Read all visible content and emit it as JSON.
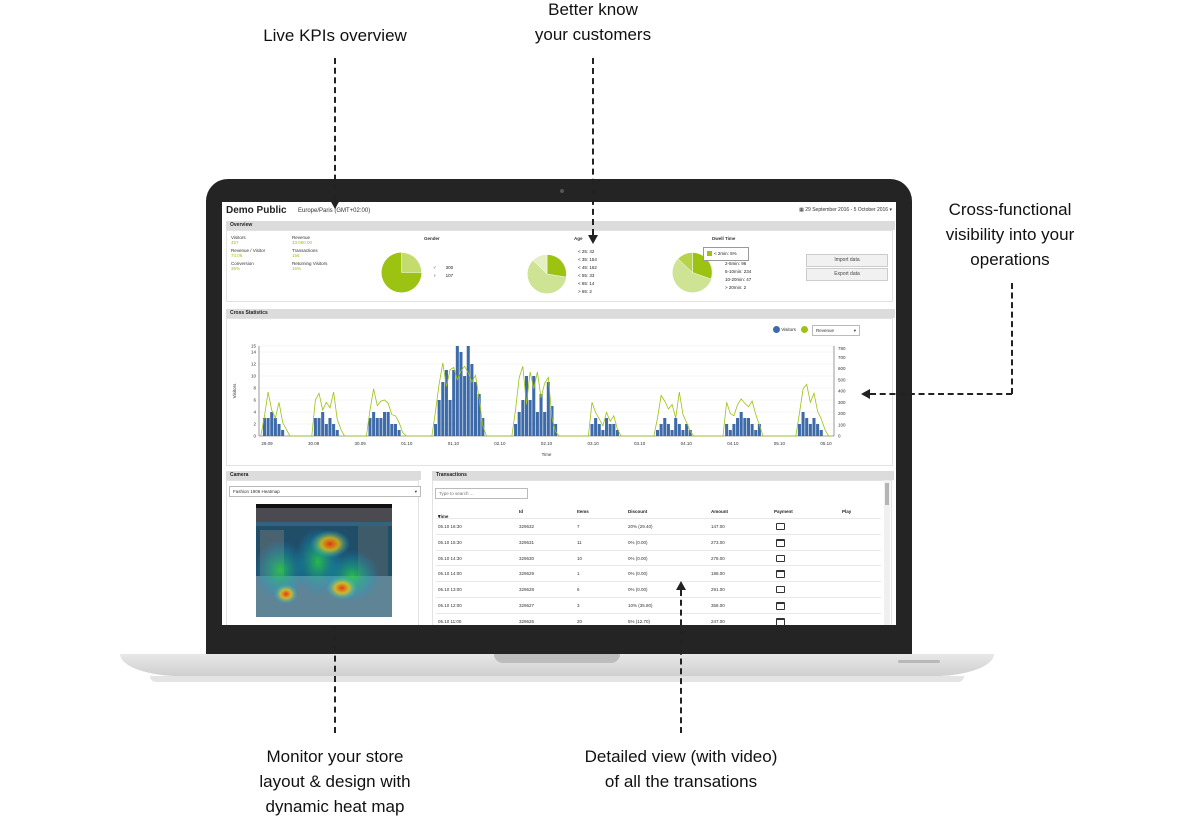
{
  "callouts": {
    "kpis": "Live KPIs overview",
    "customers_line1": "Better know",
    "customers_line2": "your customers",
    "cross_line1": "Cross-functional",
    "cross_line2": "visibility into your",
    "cross_line3": "operations",
    "heatmap_line1": "Monitor your store",
    "heatmap_line2": "layout & design with",
    "heatmap_line3": "dynamic heat map",
    "transactions_line1": "Detailed view (with video)",
    "transactions_line2": "of all the transations"
  },
  "dashboard": {
    "title": "Demo Public",
    "timezone": "Europe/Paris (GMT+02:00)",
    "date_range": "29 September 2016 - 5 October 2016",
    "overview": {
      "header": "Overview",
      "kpis": [
        {
          "label": "Visitors",
          "value": "457"
        },
        {
          "label": "Revenue",
          "value": "33,060.00"
        },
        {
          "label": "Revenue / Visitor",
          "value": "74.06"
        },
        {
          "label": "Transactions",
          "value": "156"
        },
        {
          "label": "Conversion",
          "value": "35%"
        },
        {
          "label": "Returning Visitors",
          "value": "16%"
        }
      ],
      "gender": {
        "title": "Gender",
        "male": "300",
        "female": "107"
      },
      "age": {
        "title": "Age",
        "items": [
          "< 25: 42",
          "< 35: 154",
          "< 45: 162",
          "< 55: 33",
          "< 65: 14",
          "> 65: 2"
        ]
      },
      "dwell": {
        "title": "Dwell Time",
        "legend": "< 2min: 5%",
        "items": [
          "2-5min: 96",
          "5-10min: 234",
          "10-20min: 47",
          "> 20min: 2"
        ]
      },
      "import_label": "Import data",
      "export_label": "Export data"
    },
    "cross_stats": {
      "header": "Cross Statistics",
      "legend_visitors": "Visitors",
      "metric_select": "Revenue"
    },
    "camera": {
      "header": "Camera",
      "selected": "Fashion 1906 Heatmap"
    },
    "transactions": {
      "header": "Transactions",
      "search_placeholder": "Type to search ...",
      "columns": [
        "Time",
        "Id",
        "Items",
        "Discount",
        "Amount",
        "Payment",
        "Play"
      ],
      "rows": [
        [
          "05.10 16:30",
          "329632",
          "7",
          "20% (29.40)",
          "147.00",
          "cash"
        ],
        [
          "05.10 15:30",
          "329631",
          "11",
          "0% (0.00)",
          "273.00",
          "card"
        ],
        [
          "05.10 14:30",
          "329630",
          "10",
          "0% (0.00)",
          "278.00",
          "cash"
        ],
        [
          "05.10 14:00",
          "329629",
          "1",
          "0% (0.00)",
          "188.00",
          "card"
        ],
        [
          "05.10 13:00",
          "329628",
          "6",
          "0% (0.00)",
          "291.00",
          "cash"
        ],
        [
          "05.10 12:00",
          "329627",
          "3",
          "10% (35.80)",
          "358.00",
          "card"
        ],
        [
          "05.10 11:00",
          "329626",
          "20",
          "5% (12.70)",
          "247.00",
          "card"
        ]
      ]
    }
  },
  "chart_data": {
    "type": "bar",
    "ylabel": "Visitors",
    "xlabel": "Time",
    "ylim": [
      0,
      15
    ],
    "y2lim": [
      0,
      800
    ],
    "x_ticks": [
      "29.09",
      "30.09",
      "30.09",
      "01.10",
      "01.10",
      "02.10",
      "02.10",
      "03.10",
      "03.10",
      "04.10",
      "04.10",
      "05.10",
      "05.10"
    ],
    "y_ticks": [
      "0",
      "2",
      "4",
      "6",
      "8",
      "10",
      "12",
      "14",
      "15"
    ],
    "y2_ticks": [
      "0",
      "100",
      "200",
      "300",
      "400",
      "500",
      "600",
      "700",
      "780"
    ],
    "series": [
      {
        "name": "Visitors",
        "type": "bar",
        "color": "#3d6aa8",
        "values": [
          0,
          3,
          3,
          4,
          3,
          2,
          1,
          0,
          0,
          0,
          0,
          0,
          0,
          0,
          0,
          3,
          3,
          4,
          2,
          3,
          2,
          1,
          0,
          0,
          0,
          0,
          0,
          0,
          0,
          0,
          3,
          4,
          3,
          3,
          4,
          4,
          2,
          2,
          1,
          0,
          0,
          0,
          0,
          0,
          0,
          0,
          0,
          0,
          2,
          6,
          9,
          11,
          6,
          11,
          15,
          14,
          10,
          15,
          12,
          9,
          7,
          3,
          0,
          0,
          0,
          0,
          0,
          0,
          0,
          0,
          2,
          4,
          6,
          10,
          6,
          10,
          4,
          7,
          4,
          9,
          5,
          2,
          0,
          0,
          0,
          0,
          0,
          0,
          0,
          0,
          0,
          2,
          3,
          2,
          1,
          3,
          2,
          2,
          1,
          0,
          0,
          0,
          0,
          0,
          0,
          0,
          0,
          0,
          0,
          1,
          2,
          3,
          2,
          1,
          3,
          2,
          1,
          2,
          1,
          0,
          0,
          0,
          0,
          0,
          0,
          0,
          0,
          0,
          2,
          1,
          2,
          3,
          4,
          3,
          3,
          2,
          1,
          2,
          0,
          0,
          0,
          0,
          0,
          0,
          0,
          0,
          0,
          0,
          2,
          4,
          3,
          2,
          3,
          2,
          1,
          0,
          0,
          0
        ]
      },
      {
        "name": "Revenue",
        "type": "line",
        "color": "#9cc212",
        "values": [
          0,
          180,
          390,
          230,
          160,
          300,
          120,
          60,
          0,
          0,
          0,
          0,
          0,
          0,
          0,
          320,
          380,
          230,
          300,
          250,
          390,
          150,
          60,
          0,
          0,
          0,
          0,
          0,
          0,
          0,
          230,
          420,
          270,
          310,
          320,
          290,
          190,
          180,
          120,
          30,
          0,
          0,
          0,
          0,
          0,
          0,
          0,
          0,
          220,
          460,
          650,
          440,
          590,
          610,
          500,
          580,
          620,
          560,
          480,
          540,
          330,
          90,
          0,
          0,
          0,
          0,
          0,
          0,
          0,
          0,
          240,
          520,
          620,
          280,
          570,
          420,
          570,
          340,
          470,
          520,
          160,
          40,
          0,
          0,
          0,
          0,
          0,
          0,
          0,
          0,
          0,
          300,
          210,
          150,
          90,
          210,
          130,
          180,
          60,
          0,
          0,
          0,
          0,
          0,
          0,
          0,
          0,
          0,
          0,
          160,
          360,
          310,
          240,
          280,
          160,
          390,
          190,
          120,
          40,
          0,
          0,
          0,
          0,
          0,
          0,
          0,
          0,
          0,
          300,
          200,
          180,
          280,
          330,
          290,
          260,
          310,
          190,
          100,
          0,
          0,
          0,
          0,
          0,
          0,
          0,
          0,
          0,
          0,
          200,
          420,
          460,
          300,
          380,
          220,
          150,
          60,
          0,
          0
        ]
      }
    ]
  }
}
